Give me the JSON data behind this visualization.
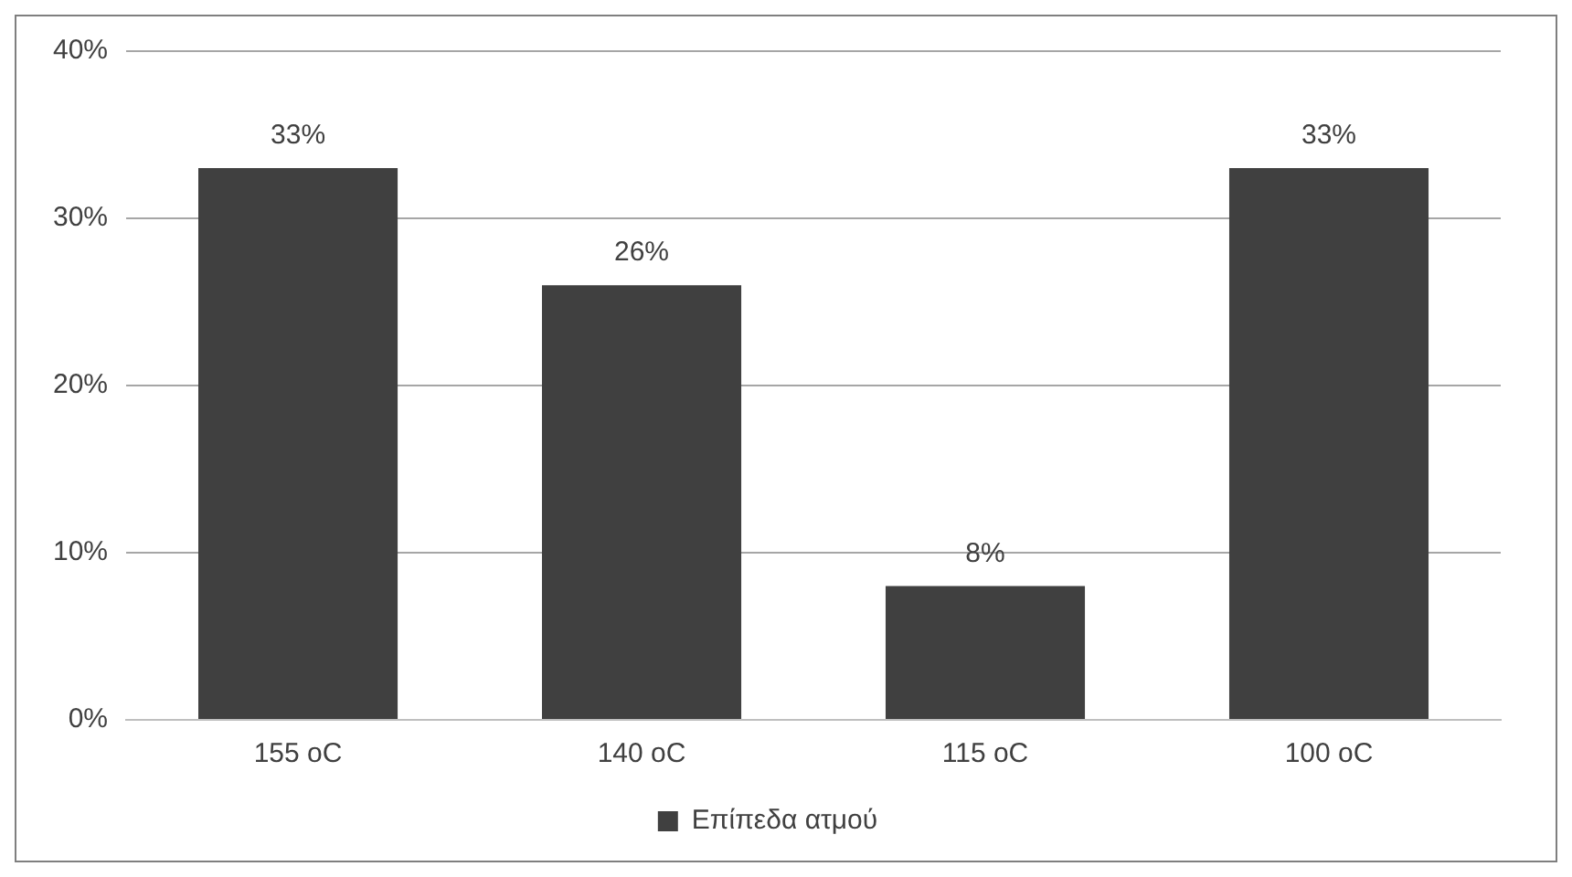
{
  "chart_data": {
    "type": "bar",
    "categories": [
      "155 oC",
      "140 oC",
      "115 oC",
      "100 oC"
    ],
    "series": [
      {
        "name": "Επίπεδα ατμού",
        "color": "#404040",
        "values": [
          33,
          26,
          8,
          33
        ],
        "value_labels": [
          "33%",
          "26%",
          "8%",
          "33%"
        ]
      }
    ],
    "ylim": [
      0,
      40
    ],
    "yticks": [
      {
        "value": 0,
        "label": "0%"
      },
      {
        "value": 10,
        "label": "10%"
      },
      {
        "value": 20,
        "label": "20%"
      },
      {
        "value": 30,
        "label": "30%"
      },
      {
        "value": 40,
        "label": "40%"
      }
    ],
    "grid": "y",
    "legend": "bottom"
  }
}
